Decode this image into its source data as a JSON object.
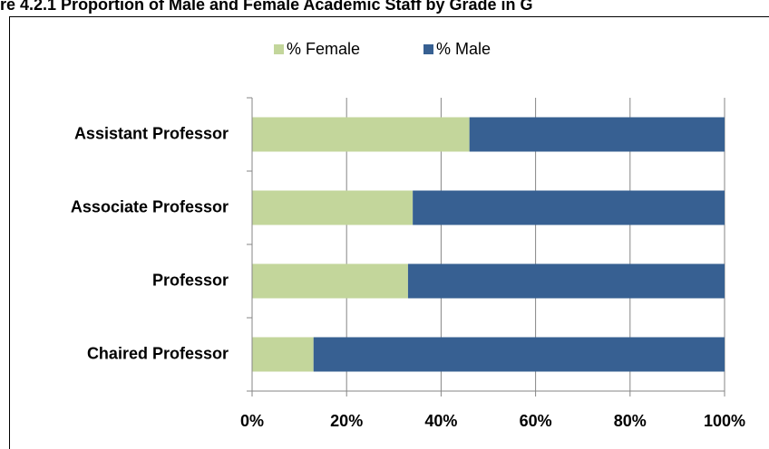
{
  "chart_data": {
    "type": "stacked-barh",
    "title": "re 4.2.1 Proportion of Male and Female Academic Staff by Grade in G",
    "categories": [
      "Chaired Professor",
      "Professor",
      "Associate Professor",
      "Assistant Professor"
    ],
    "series": [
      {
        "name": "% Female",
        "color": "#c3d69b",
        "values": [
          13,
          33,
          34,
          46
        ]
      },
      {
        "name": "% Male",
        "color": "#376092",
        "values": [
          87,
          67,
          66,
          54
        ]
      }
    ],
    "xlim": [
      0,
      100
    ],
    "xticks": [
      {
        "value": 0,
        "label": "0%"
      },
      {
        "value": 20,
        "label": "20%"
      },
      {
        "value": 40,
        "label": "40%"
      },
      {
        "value": 60,
        "label": "60%"
      },
      {
        "value": 80,
        "label": "80%"
      },
      {
        "value": 100,
        "label": "100%"
      }
    ],
    "grid": true,
    "legend": "top"
  }
}
